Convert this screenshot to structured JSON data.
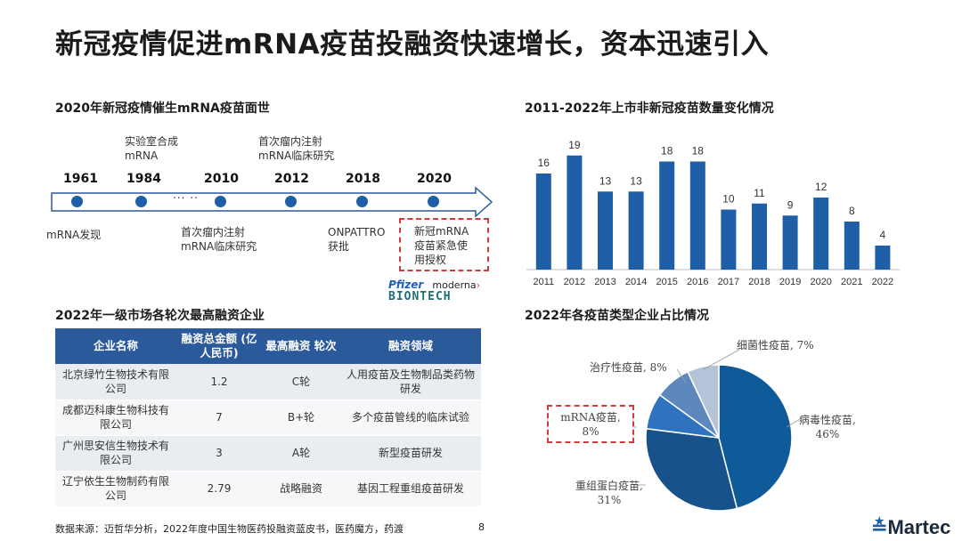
{
  "title": "新冠疫情促进mRNA疫苗投融资快速增长，资本迅速引入",
  "timeline": {
    "heading": "2020年新冠疫情催生mRNA疫苗面世",
    "years": [
      "1961",
      "1984",
      "2010",
      "2012",
      "2018",
      "2020"
    ],
    "above_1984_line1": "实验室合成",
    "above_1984_line2": "mRNA",
    "above_2012_line1": "首次瘤内注射",
    "above_2012_line2": "mRNA临床研究",
    "ellipsis": "... ..",
    "below_1961": "mRNA发现",
    "below_2010_line1": "首次瘤内注射",
    "below_2010_line2": "mRNA临床研究",
    "below_2018_line1": "ONPATTRO",
    "below_2018_line2": "获批",
    "box_line1": "新冠mRNA",
    "box_line2": "疫苗紧急使",
    "box_line3": "用授权",
    "logos": {
      "pfizer": "Pfizer",
      "moderna": "moderna",
      "biontech": "BIONTECH"
    }
  },
  "table": {
    "heading": "2022年一级市场各轮次最高融资企业",
    "headers": [
      "企业名称",
      "融资总金额 (亿人民币)",
      "最高融资 轮次",
      "融资领域"
    ],
    "rows": [
      {
        "company": "北京绿竹生物技术有限公司",
        "amount": "1.2",
        "round": "C轮",
        "field": "人用疫苗及生物制品类药物研发"
      },
      {
        "company": "成都迈科康生物科技有限公司",
        "amount": "7",
        "round": "B+轮",
        "field": "多个疫苗管线的临床试验"
      },
      {
        "company": "广州思安信生物技术有限公司",
        "amount": "3",
        "round": "A轮",
        "field": "新型疫苗研发"
      },
      {
        "company": "辽宁依生生物制药有限公司",
        "amount": "2.79",
        "round": "战略融资",
        "field": "基因工程重组疫苗研发"
      }
    ]
  },
  "footer": {
    "source": "数据来源：迈哲华分析，2022年度中国生物医药投融资蓝皮书，医药魔方，药渡",
    "page": "8",
    "logo": "Martec"
  },
  "chart_data": [
    {
      "type": "bar",
      "title": "2011-2022年上市非新冠疫苗数量变化情况",
      "categories": [
        "2011",
        "2012",
        "2013",
        "2014",
        "2015",
        "2016",
        "2017",
        "2018",
        "2019",
        "2020",
        "2021",
        "2022"
      ],
      "values": [
        16,
        19,
        13,
        13,
        18,
        18,
        10,
        11,
        9,
        12,
        8,
        4
      ],
      "ylim": [
        0,
        20
      ],
      "grid": false,
      "color": "#1f5fa8"
    },
    {
      "type": "pie",
      "title": "2022年各疫苗类型企业占比情况",
      "slices": [
        {
          "label": "病毒性疫苗,",
          "value": 46,
          "pct": "46%",
          "color": "#0f5a98"
        },
        {
          "label": "重组蛋白疫苗,",
          "value": 31,
          "pct": "31%",
          "color": "#17528a"
        },
        {
          "label": "mRNA疫苗,",
          "value": 8,
          "pct": "8%",
          "color": "#2f73c0"
        },
        {
          "label": "治疗性疫苗,",
          "value": 8,
          "pct": "8%",
          "color": "#5e88bd"
        },
        {
          "label": "细菌性疫苗,",
          "value": 7,
          "pct": "7%",
          "color": "#b3c3d8"
        }
      ]
    }
  ]
}
